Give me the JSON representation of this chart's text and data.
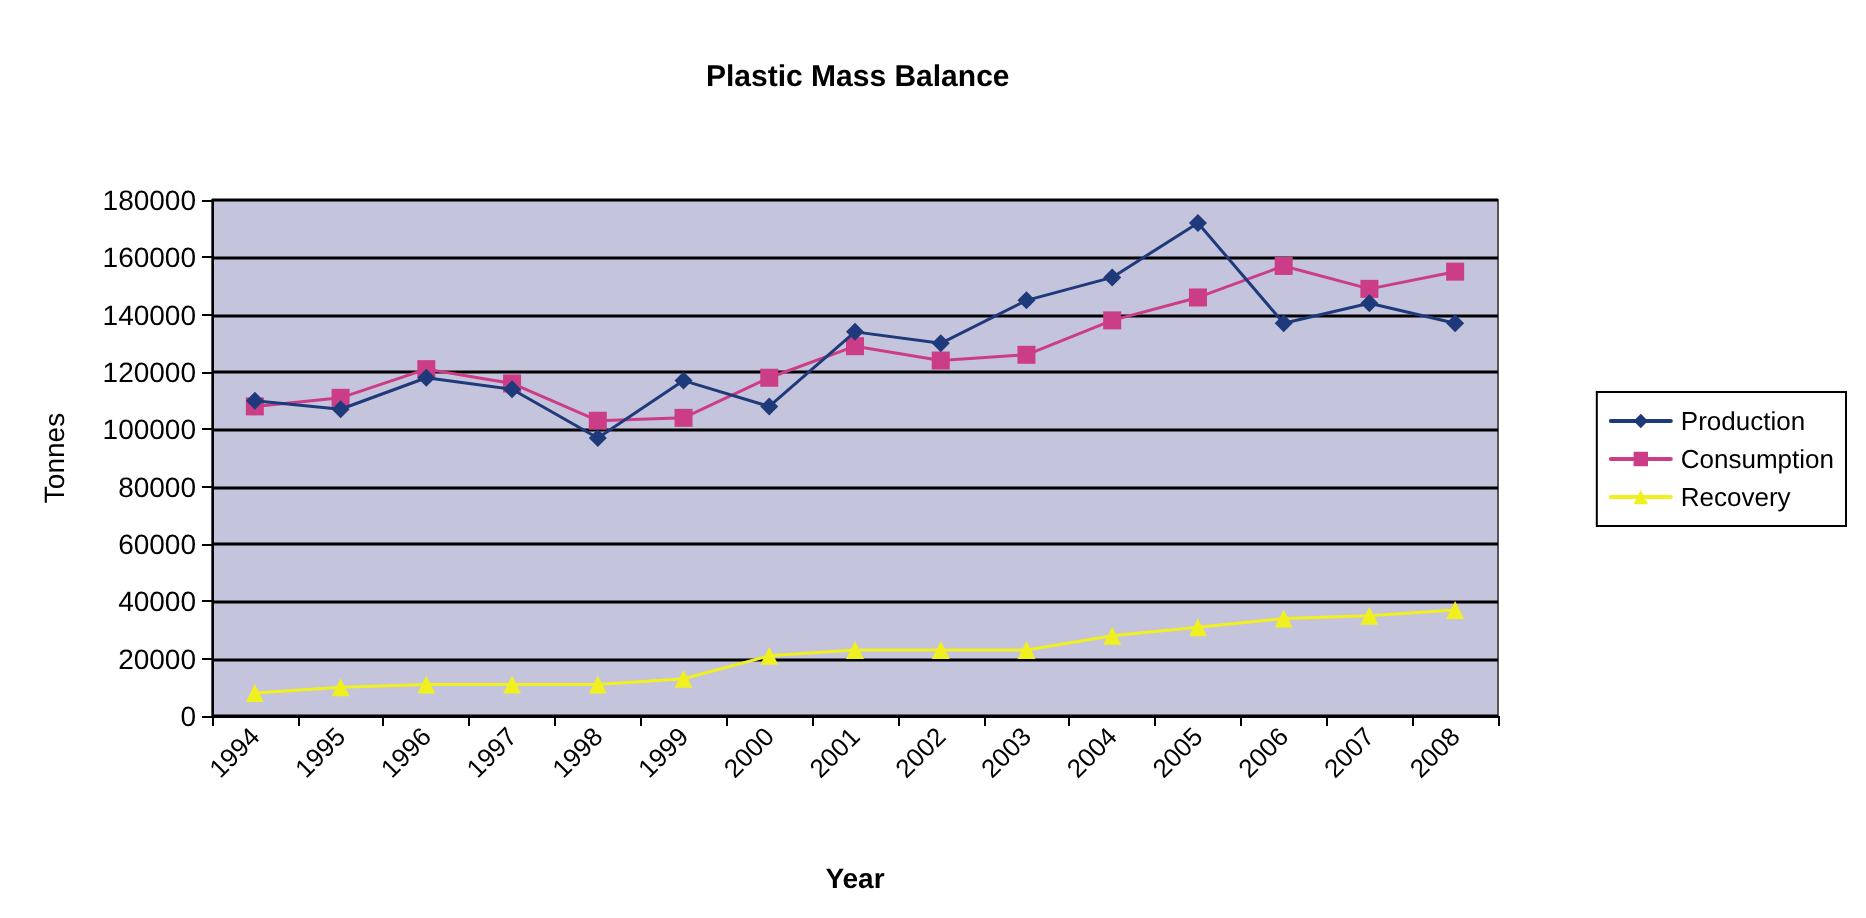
{
  "chart_data": {
    "type": "line",
    "title": "Plastic Mass Balance",
    "xlabel": "Year",
    "ylabel": "Tonnes",
    "categories": [
      "1994",
      "1995",
      "1996",
      "1997",
      "1998",
      "1999",
      "2000",
      "2001",
      "2002",
      "2003",
      "2004",
      "2005",
      "2006",
      "2007",
      "2008"
    ],
    "series": [
      {
        "name": "Production",
        "color": "#1f3a7a",
        "marker": "diamond",
        "values": [
          110000,
          107000,
          118000,
          114000,
          97000,
          117000,
          108000,
          134000,
          130000,
          145000,
          153000,
          172000,
          137000,
          144000,
          137000
        ]
      },
      {
        "name": "Consumption",
        "color": "#cc3d88",
        "marker": "square",
        "values": [
          108000,
          111000,
          121000,
          116000,
          103000,
          104000,
          118000,
          129000,
          124000,
          126000,
          138000,
          146000,
          157000,
          149000,
          155000
        ]
      },
      {
        "name": "Recovery",
        "color": "#f0f020",
        "marker": "triangle",
        "values": [
          8000,
          10000,
          11000,
          11000,
          11000,
          13000,
          21000,
          23000,
          23000,
          23000,
          28000,
          31000,
          34000,
          35000,
          37000
        ]
      }
    ],
    "ylim": [
      0,
      180000
    ],
    "yticks": [
      0,
      20000,
      40000,
      60000,
      80000,
      100000,
      120000,
      140000,
      160000,
      180000
    ],
    "grid": "y",
    "legend": "right"
  }
}
